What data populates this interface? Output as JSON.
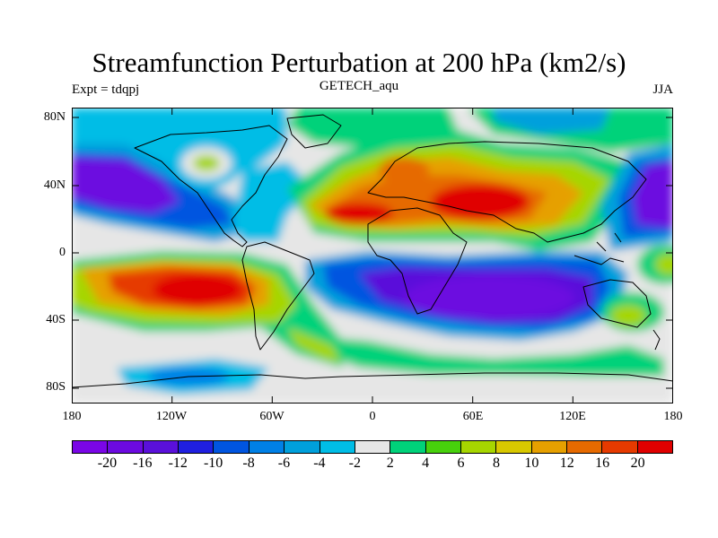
{
  "title": "Streamfunction Perturbation at 200 hPa (km2/s)",
  "left_string": "Expt = tdqpj",
  "center_string": "GETECH_aqu",
  "right_string": "JJA",
  "lat_ticks": [
    "80N",
    "40N",
    "0",
    "40S",
    "80S"
  ],
  "lon_ticks": [
    "180",
    "120W",
    "60W",
    "0",
    "60E",
    "120E",
    "180"
  ],
  "colorbar": {
    "colors": [
      "#7a06e6",
      "#6c0ae0",
      "#5a10da",
      "#1f1fe0",
      "#0055e0",
      "#0080e6",
      "#00a0dc",
      "#00bde6",
      "#e6e6e6",
      "#00d27a",
      "#47d10c",
      "#a6d600",
      "#d8c800",
      "#e6a000",
      "#e66a00",
      "#e63a00",
      "#e00000"
    ],
    "labels": [
      "-20",
      "-16",
      "-12",
      "-10",
      "-8",
      "-6",
      "-4",
      "-2",
      "2",
      "4",
      "6",
      "8",
      "10",
      "12",
      "16",
      "20"
    ]
  }
}
